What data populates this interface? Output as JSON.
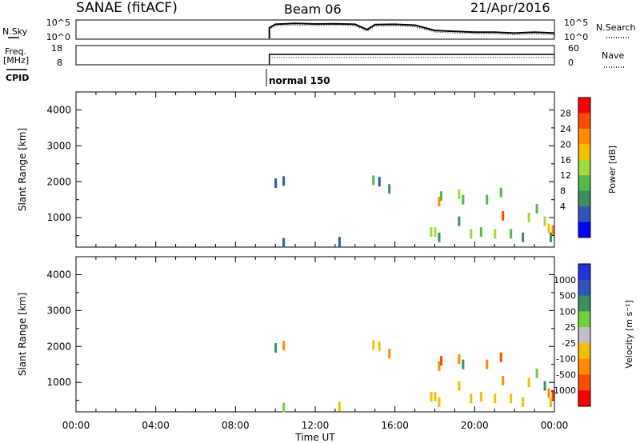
{
  "header": {
    "station": "SANAE (fitACF)",
    "beam": "Beam 06",
    "date": "21/Apr/2016"
  },
  "panels": {
    "nsky_label": "N.Sky",
    "nsky_ticks": [
      "10^5",
      "10^0"
    ],
    "nsearch_label": "N.Search",
    "nsearch_ticks": [
      "10^5",
      "10^0"
    ],
    "freq_label_line1": "Freq.",
    "freq_label_line2": "[MHz]",
    "freq_ticks": [
      "18",
      "8"
    ],
    "nave_label": "Nave",
    "nave_ticks": [
      "60",
      "0"
    ],
    "cpid_label": "CPID",
    "cpid_value": "normal 150"
  },
  "axes": {
    "ylabel": "Slant Range [km]",
    "xlabel": "Time UT",
    "xticks": [
      "00:00",
      "04:00",
      "08:00",
      "12:00",
      "16:00",
      "20:00",
      "00:00"
    ],
    "yticks": [
      "4000",
      "3000",
      "2000",
      "1000"
    ]
  },
  "colorbars": {
    "power": {
      "label": "Power [dB]",
      "ticks": [
        "28",
        "24",
        "20",
        "16",
        "12",
        "8",
        "4"
      ],
      "colors": [
        "#ff0000",
        "#ff4a00",
        "#ff8c00",
        "#f3c000",
        "#9fdc3a",
        "#55b94a",
        "#3a8f5c",
        "#2f56b5",
        "#0000ff"
      ]
    },
    "velocity": {
      "label": "Velocity [m s⁻¹]",
      "ticks": [
        "1000",
        "500",
        "100",
        "25",
        "-25",
        "-100",
        "-500",
        "-1000"
      ],
      "colors": [
        "#2233dd",
        "#2f56b5",
        "#3a8f5c",
        "#6fcf3f",
        "#c0c0c0",
        "#f3c000",
        "#ff8c00",
        "#ff4a00",
        "#ff0000"
      ]
    }
  },
  "chart_data": [
    {
      "type": "line",
      "title": "N.Sky / N.Search",
      "x_unit": "hours UT",
      "x": [
        9.7,
        10,
        11,
        12,
        13,
        14,
        14.6,
        15,
        16,
        17,
        18,
        19,
        20,
        21,
        22,
        23,
        24
      ],
      "series": [
        {
          "name": "N.Sky",
          "values": [
            0.6,
            0.8,
            0.85,
            0.82,
            0.83,
            0.8,
            0.5,
            0.78,
            0.8,
            0.75,
            0.45,
            0.4,
            0.35,
            0.35,
            0.3,
            0.35,
            0.3
          ]
        },
        {
          "name": "N.Search",
          "values": [
            0.6,
            0.8,
            0.85,
            0.82,
            0.83,
            0.8,
            0.5,
            0.78,
            0.8,
            0.75,
            0.45,
            0.4,
            0.35,
            0.35,
            0.3,
            0.35,
            0.3
          ]
        }
      ],
      "ylim": [
        0,
        1
      ]
    },
    {
      "type": "line",
      "title": "Freq / Nave",
      "x_unit": "hours UT",
      "x": [
        9.7,
        24
      ],
      "series": [
        {
          "name": "Freq. [MHz]",
          "values": [
            12,
            12
          ]
        },
        {
          "name": "Nave",
          "values": [
            12,
            12
          ]
        }
      ]
    },
    {
      "type": "scatter",
      "title": "Power",
      "xlabel": "Time UT",
      "ylabel": "Slant Range [km]",
      "xlim": [
        0,
        24
      ],
      "ylim": [
        180,
        4500
      ],
      "points": [
        {
          "x": 10.0,
          "y": 1960,
          "v": 6
        },
        {
          "x": 10.4,
          "y": 2020,
          "v": 4
        },
        {
          "x": 10.4,
          "y": 300,
          "v": 4
        },
        {
          "x": 13.2,
          "y": 330,
          "v": 4
        },
        {
          "x": 14.9,
          "y": 2040,
          "v": 12
        },
        {
          "x": 15.2,
          "y": 2000,
          "v": 4
        },
        {
          "x": 15.7,
          "y": 1800,
          "v": 8
        },
        {
          "x": 17.8,
          "y": 600,
          "v": 16
        },
        {
          "x": 18.0,
          "y": 600,
          "v": 16
        },
        {
          "x": 18.2,
          "y": 1450,
          "v": 24
        },
        {
          "x": 18.3,
          "y": 1600,
          "v": 12
        },
        {
          "x": 18.2,
          "y": 450,
          "v": 8
        },
        {
          "x": 19.2,
          "y": 1650,
          "v": 16
        },
        {
          "x": 19.4,
          "y": 1500,
          "v": 12
        },
        {
          "x": 19.2,
          "y": 900,
          "v": 8
        },
        {
          "x": 19.8,
          "y": 550,
          "v": 16
        },
        {
          "x": 20.3,
          "y": 600,
          "v": 12
        },
        {
          "x": 20.6,
          "y": 1500,
          "v": 12
        },
        {
          "x": 21.3,
          "y": 1700,
          "v": 12
        },
        {
          "x": 21.4,
          "y": 1050,
          "v": 28
        },
        {
          "x": 21.0,
          "y": 550,
          "v": 16
        },
        {
          "x": 21.8,
          "y": 550,
          "v": 12
        },
        {
          "x": 22.4,
          "y": 450,
          "v": 8
        },
        {
          "x": 22.7,
          "y": 1000,
          "v": 16
        },
        {
          "x": 23.1,
          "y": 1250,
          "v": 12
        },
        {
          "x": 23.5,
          "y": 900,
          "v": 16
        },
        {
          "x": 23.7,
          "y": 700,
          "v": 20
        },
        {
          "x": 23.9,
          "y": 650,
          "v": 24
        },
        {
          "x": 23.8,
          "y": 450,
          "v": 8
        }
      ]
    },
    {
      "type": "scatter",
      "title": "Velocity",
      "xlabel": "Time UT",
      "ylabel": "Slant Range [km]",
      "xlim": [
        0,
        24
      ],
      "ylim": [
        180,
        4500
      ],
      "points": [
        {
          "x": 10.0,
          "y": 1960,
          "v": 200
        },
        {
          "x": 10.4,
          "y": 2020,
          "v": -150
        },
        {
          "x": 10.4,
          "y": 300,
          "v": 50
        },
        {
          "x": 13.2,
          "y": 330,
          "v": -50
        },
        {
          "x": 14.9,
          "y": 2040,
          "v": -40
        },
        {
          "x": 15.2,
          "y": 2000,
          "v": -40
        },
        {
          "x": 15.7,
          "y": 1800,
          "v": -150
        },
        {
          "x": 17.8,
          "y": 600,
          "v": -60
        },
        {
          "x": 18.0,
          "y": 600,
          "v": -80
        },
        {
          "x": 18.2,
          "y": 1450,
          "v": -300
        },
        {
          "x": 18.3,
          "y": 1600,
          "v": -700
        },
        {
          "x": 18.2,
          "y": 450,
          "v": -60
        },
        {
          "x": 19.2,
          "y": 1650,
          "v": -300
        },
        {
          "x": 19.4,
          "y": 1500,
          "v": 200
        },
        {
          "x": 19.2,
          "y": 900,
          "v": -60
        },
        {
          "x": 19.8,
          "y": 550,
          "v": -60
        },
        {
          "x": 20.3,
          "y": 600,
          "v": -80
        },
        {
          "x": 20.6,
          "y": 1500,
          "v": -300
        },
        {
          "x": 21.3,
          "y": 1700,
          "v": -700
        },
        {
          "x": 21.4,
          "y": 1050,
          "v": -300
        },
        {
          "x": 21.0,
          "y": 550,
          "v": -60
        },
        {
          "x": 21.8,
          "y": 550,
          "v": -80
        },
        {
          "x": 22.4,
          "y": 450,
          "v": -80
        },
        {
          "x": 22.7,
          "y": 1000,
          "v": -80
        },
        {
          "x": 23.1,
          "y": 1250,
          "v": 50
        },
        {
          "x": 23.5,
          "y": 900,
          "v": 200
        },
        {
          "x": 23.7,
          "y": 700,
          "v": -300
        },
        {
          "x": 23.9,
          "y": 650,
          "v": -700
        },
        {
          "x": 23.8,
          "y": 450,
          "v": -80
        }
      ]
    }
  ]
}
